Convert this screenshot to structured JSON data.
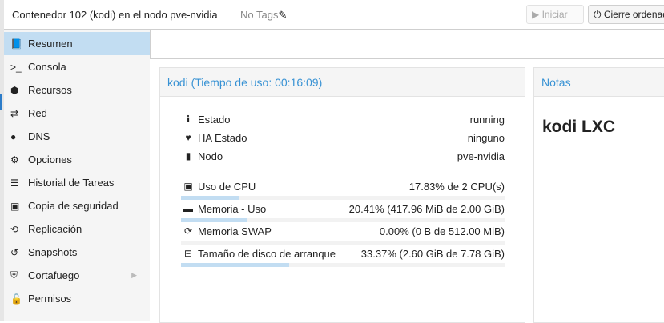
{
  "header": {
    "title": "Contenedor 102 (kodi) en el nodo pve-nvidia",
    "tags": "No Tags",
    "start_label": "Iniciar",
    "shutdown_label": "Cierre ordenado"
  },
  "sidebar": {
    "items": [
      {
        "label": "Resumen",
        "icon": "book-icon",
        "active": true
      },
      {
        "label": "Consola",
        "icon": "terminal-icon"
      },
      {
        "label": "Recursos",
        "icon": "cube-icon"
      },
      {
        "label": "Red",
        "icon": "exchange-icon"
      },
      {
        "label": "DNS",
        "icon": "globe-icon"
      },
      {
        "label": "Opciones",
        "icon": "gear-icon"
      },
      {
        "label": "Historial de Tareas",
        "icon": "list-icon"
      },
      {
        "label": "Copia de seguridad",
        "icon": "floppy-icon"
      },
      {
        "label": "Replicación",
        "icon": "retweet-icon"
      },
      {
        "label": "Snapshots",
        "icon": "history-icon"
      },
      {
        "label": "Cortafuego",
        "icon": "shield-icon",
        "has_submenu": true
      },
      {
        "label": "Permisos",
        "icon": "unlock-icon"
      }
    ]
  },
  "status": {
    "title": "kodi (Tiempo de uso: 00:16:09)",
    "info": [
      {
        "label": "Estado",
        "value": "running"
      },
      {
        "label": "HA Estado",
        "value": "ninguno"
      },
      {
        "label": "Nodo",
        "value": "pve-nvidia"
      }
    ],
    "usage": [
      {
        "label": "Uso de CPU",
        "value": "17.83% de 2 CPU(s)",
        "percent": 17.83
      },
      {
        "label": "Memoria - Uso",
        "value": "20.41% (417.96 MiB de 2.00 GiB)",
        "percent": 20.41
      },
      {
        "label": "Memoria SWAP",
        "value": "0.00% (0 B de 512.00 MiB)",
        "percent": 0
      },
      {
        "label": "Tamaño de disco de arranque",
        "value": "33.37% (2.60 GiB de 7.78 GiB)",
        "percent": 33.37
      }
    ]
  },
  "notes": {
    "title": "Notas",
    "content": "kodi LXC"
  },
  "colors": {
    "accent": "#3892d4",
    "selected": "#c2ddf2"
  }
}
